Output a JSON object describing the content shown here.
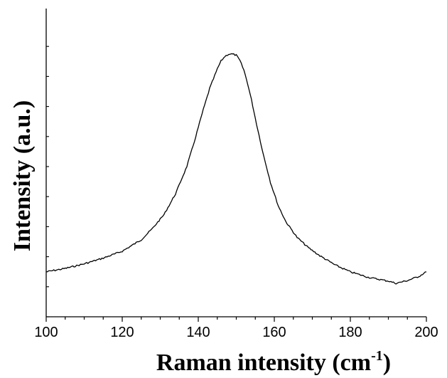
{
  "chart_data": {
    "type": "line",
    "title": "",
    "xlabel_main": "Raman intensity (cm",
    "xlabel_sup": "-1",
    "xlabel_close": ")",
    "ylabel": "Intensity (a.u.)",
    "xlim": [
      100,
      200
    ],
    "x_ticks": [
      "100",
      "120",
      "140",
      "160",
      "180",
      "200"
    ],
    "y_ticks_labeled": false,
    "grid": false,
    "legend": "none",
    "line_color": "#000000",
    "series": [
      {
        "x": [
          100,
          105,
          110,
          115,
          120,
          125,
          128,
          131,
          134,
          137,
          139,
          141,
          143,
          145,
          146,
          147,
          148,
          149,
          150,
          151,
          152,
          153,
          154,
          155,
          157,
          159,
          161,
          163,
          166,
          169,
          172,
          176,
          180,
          185,
          190,
          192,
          195,
          198,
          200
        ],
        "y": [
          0.05,
          0.065,
          0.085,
          0.11,
          0.14,
          0.19,
          0.24,
          0.3,
          0.39,
          0.51,
          0.62,
          0.74,
          0.85,
          0.935,
          0.97,
          0.99,
          1.0,
          1.0,
          0.995,
          0.97,
          0.93,
          0.87,
          0.8,
          0.72,
          0.57,
          0.44,
          0.34,
          0.27,
          0.2,
          0.155,
          0.12,
          0.08,
          0.05,
          0.025,
          0.01,
          0.0,
          0.012,
          0.03,
          0.05
        ]
      }
    ]
  }
}
